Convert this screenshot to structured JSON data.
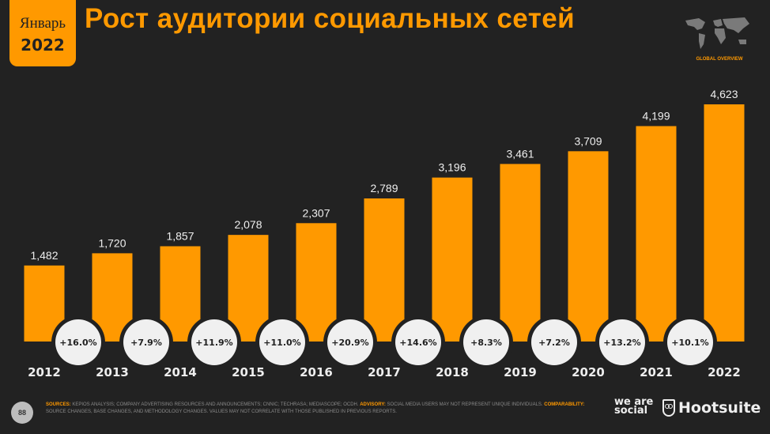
{
  "badge": {
    "month": "Январь",
    "year": "2022"
  },
  "title": "Рост аудитории социальных сетей",
  "section_label": "GLOBAL OVERVIEW",
  "page_number": "88",
  "footer": {
    "sources_label": "SOURCES:",
    "sources_text": "KEPIOS ANALYSIS; COMPANY ADVERTISING RESOURCES AND ANNOUNCEMENTS; CNNIC; TECHRASA; MEDIASCOPE; OCDH.",
    "advisory_label": "ADVISORY:",
    "advisory_text": "SOCIAL MEDIA USERS MAY NOT REPRESENT UNIQUE INDIVIDUALS.",
    "comparability_label": "COMPARABILITY:",
    "comparability_text": "SOURCE CHANGES, BASE CHANGES, AND METHODOLOGY CHANGES. VALUES MAY NOT CORRELATE WITH THOSE PUBLISHED IN PREVIOUS REPORTS."
  },
  "logos": {
    "we_are_social": "we are social",
    "hootsuite": "Hootsuite"
  },
  "colors": {
    "accent": "#FF9900",
    "background": "#222222",
    "circle": "#F0F0F0"
  },
  "chart_data": {
    "type": "bar",
    "title": "Рост аудитории социальных сетей",
    "categories": [
      "2012",
      "2013",
      "2014",
      "2015",
      "2016",
      "2017",
      "2018",
      "2019",
      "2020",
      "2021",
      "2022"
    ],
    "values": [
      1482,
      1720,
      1857,
      2078,
      2307,
      2789,
      3196,
      3461,
      3709,
      4199,
      4623
    ],
    "value_labels": [
      "1,482",
      "1,720",
      "1,857",
      "2,078",
      "2,307",
      "2,789",
      "3,196",
      "3,461",
      "3,709",
      "4,199",
      "4,623"
    ],
    "growth_labels": [
      "+16.0%",
      "+7.9%",
      "+11.9%",
      "+11.0%",
      "+20.9%",
      "+14.6%",
      "+8.3%",
      "+7.2%",
      "+13.2%",
      "+10.1%"
    ],
    "xlabel": "",
    "ylabel": "",
    "ylim": [
      0,
      4623
    ],
    "grid": false
  }
}
